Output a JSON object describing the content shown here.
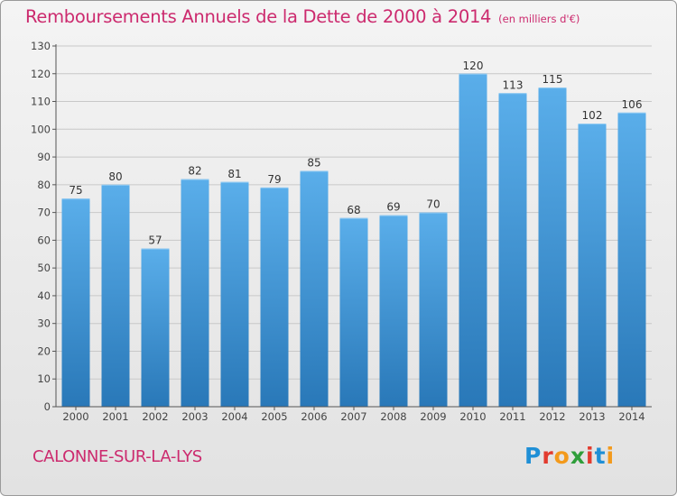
{
  "title": "Remboursements Annuels de la Dette de 2000 à 2014",
  "subtitle": "(en milliers d'€)",
  "commune": "CALONNE-SUR-LA-LYS",
  "brand": {
    "name": "Proxiti",
    "letters": [
      {
        "ch": "P",
        "color": "#1f8fd6"
      },
      {
        "ch": "r",
        "color": "#e23b2e"
      },
      {
        "ch": "o",
        "color": "#f39a1c"
      },
      {
        "ch": "x",
        "color": "#2f9e3a"
      },
      {
        "ch": "i",
        "color": "#e23b2e"
      },
      {
        "ch": "t",
        "color": "#1f8fd6"
      },
      {
        "ch": "i",
        "color": "#f39a1c"
      }
    ]
  },
  "colors": {
    "title": "#cc2a6e",
    "bar_top": "#5aaeea",
    "bar_bottom": "#2978b8",
    "axis": "#555555"
  },
  "chart_data": {
    "type": "bar",
    "title": "Remboursements Annuels de la Dette de 2000 à 2014",
    "unit": "(en milliers d'€)",
    "xlabel": "",
    "ylabel": "",
    "ylim": [
      0,
      130
    ],
    "yticks": [
      0,
      10,
      20,
      30,
      40,
      50,
      60,
      70,
      80,
      90,
      100,
      110,
      120,
      130
    ],
    "grid": true,
    "categories": [
      "2000",
      "2001",
      "2002",
      "2003",
      "2004",
      "2005",
      "2006",
      "2007",
      "2008",
      "2009",
      "2010",
      "2011",
      "2012",
      "2013",
      "2014"
    ],
    "values": [
      75,
      80,
      57,
      82,
      81,
      79,
      85,
      68,
      69,
      70,
      120,
      113,
      115,
      102,
      106
    ]
  }
}
